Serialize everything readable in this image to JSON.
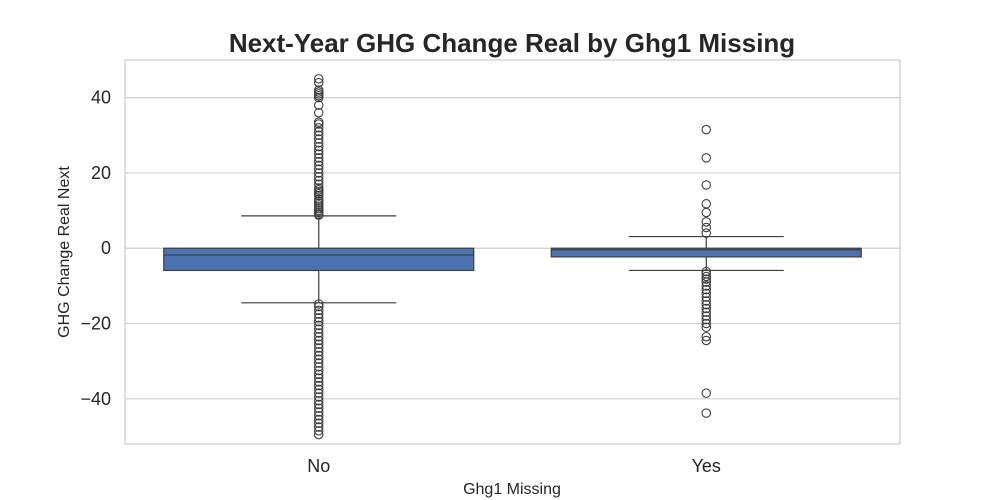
{
  "chart_data": {
    "type": "box",
    "title": "Next-Year GHG Change Real by Ghg1 Missing",
    "xlabel": "Ghg1 Missing",
    "ylabel": "GHG Change Real Next",
    "ylim": [
      -52,
      50
    ],
    "yticks": [
      40,
      20,
      0,
      -20,
      -40
    ],
    "ytick_labels": [
      "40",
      "20",
      "0",
      "−20",
      "−40"
    ],
    "grid": true,
    "box_color": "#4c72b0",
    "categories": [
      "No",
      "Yes"
    ],
    "boxes": [
      {
        "category": "No",
        "whisker_low": -14.5,
        "q1": -5.9,
        "median": -1.8,
        "q3": 0.0,
        "whisker_high": 8.6,
        "outliers": [
          45,
          44,
          42,
          41.5,
          41,
          40.5,
          40,
          38,
          36,
          33.5,
          33,
          32,
          31,
          30,
          29,
          28,
          27,
          26,
          25,
          24,
          23,
          22,
          21,
          20,
          19,
          18,
          17,
          16,
          15.5,
          15,
          14.5,
          14,
          13,
          12.5,
          12,
          11.5,
          11,
          10.5,
          10,
          9.5,
          9,
          8.8,
          -14.8,
          -15.5,
          -16.5,
          -17.5,
          -18.5,
          -19.5,
          -20.5,
          -21.5,
          -22.5,
          -23.5,
          -24.5,
          -25.5,
          -26.5,
          -27.5,
          -28.5,
          -29.5,
          -30.5,
          -31.5,
          -32.5,
          -33.5,
          -34.5,
          -35.5,
          -36.5,
          -37.5,
          -38.5,
          -39.5,
          -40.5,
          -41.5,
          -42.5,
          -43.5,
          -44.5,
          -45.5,
          -46.5,
          -47.5,
          -48.5,
          -49.5
        ]
      },
      {
        "category": "Yes",
        "whisker_low": -5.9,
        "q1": -2.3,
        "median": -0.4,
        "q3": 0.0,
        "whisker_high": 3.1,
        "outliers": [
          31.5,
          24,
          16.8,
          11.8,
          9.5,
          7,
          5.5,
          4,
          -6.2,
          -6.8,
          -7.5,
          -8.2,
          -9,
          -10,
          -11,
          -12,
          -13,
          -14,
          -15,
          -16,
          -17,
          -18,
          -19,
          -20,
          -21,
          -23.5,
          -24.5,
          -38.5,
          -43.8
        ]
      }
    ]
  }
}
